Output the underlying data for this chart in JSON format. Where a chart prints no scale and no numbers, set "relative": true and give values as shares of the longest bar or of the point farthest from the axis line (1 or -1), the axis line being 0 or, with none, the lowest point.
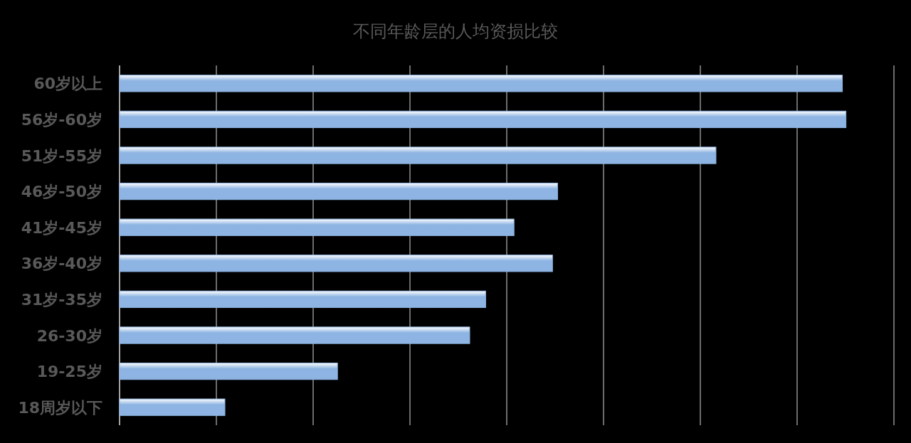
{
  "chart_data": {
    "type": "bar",
    "orientation": "horizontal",
    "relative": true,
    "title": "不同年龄层的人均资损比较",
    "categories": [
      "60岁以上",
      "56岁-60岁",
      "51岁-55岁",
      "46岁-50岁",
      "41岁-45岁",
      "36岁-40岁",
      "31岁-35岁",
      "26-30岁",
      "19-25岁",
      "18周岁以下"
    ],
    "values": [
      0.995,
      1,
      0.821,
      0.603,
      0.543,
      0.596,
      0.504,
      0.482,
      0.3,
      0.145
    ],
    "color": "#8db4e2",
    "grid": "x"
  }
}
